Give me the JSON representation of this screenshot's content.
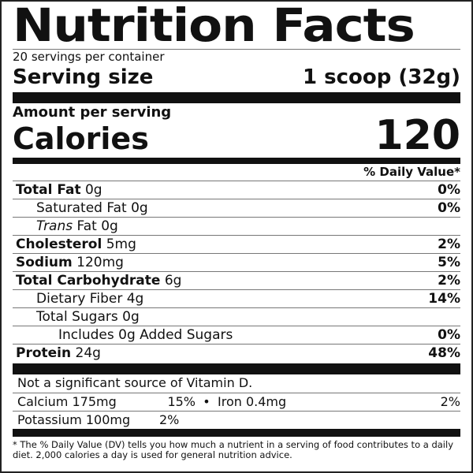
{
  "title": "Nutrition Facts",
  "servings_per_container": "20 servings per container",
  "serving_size": {
    "label": "Serving size",
    "value": "1 scoop (32g)"
  },
  "amount_per_serving": "Amount per serving",
  "calories": {
    "label": "Calories",
    "value": "120"
  },
  "dv_header": "% Daily Value*",
  "nutrients": [
    {
      "name": "Total Fat",
      "amount": "0g",
      "dv": "0%",
      "bold": true,
      "indent": 0
    },
    {
      "name": "Saturated Fat",
      "amount": "0g",
      "dv": "0%",
      "bold": false,
      "indent": 1
    },
    {
      "name_italic": "Trans",
      "name": "Fat",
      "amount": "0g",
      "dv": "",
      "bold": false,
      "indent": 1
    },
    {
      "name": "Cholesterol",
      "amount": "5mg",
      "dv": "2%",
      "bold": true,
      "indent": 0
    },
    {
      "name": "Sodium",
      "amount": "120mg",
      "dv": "5%",
      "bold": true,
      "indent": 0
    },
    {
      "name": "Total Carbohydrate",
      "amount": "6g",
      "dv": "2%",
      "bold": true,
      "indent": 0
    },
    {
      "name": "Dietary Fiber",
      "amount": "4g",
      "dv": "14%",
      "bold": false,
      "indent": 1
    },
    {
      "name": "Total Sugars",
      "amount": "0g",
      "dv": "",
      "bold": false,
      "indent": 1
    },
    {
      "name": "Includes 0g Added Sugars",
      "amount": "",
      "dv": "0%",
      "bold": false,
      "indent": 2
    },
    {
      "name": "Protein",
      "amount": "24g",
      "dv": "48%",
      "bold": true,
      "indent": 0
    }
  ],
  "vitamin_d": "Not a significant source of Vitamin D.",
  "calcium": {
    "label": "Calcium 175mg",
    "dv": "15%"
  },
  "separator": "•",
  "iron": {
    "label": "Iron 0.4mg",
    "dv": "2%"
  },
  "potassium": {
    "label": "Potassium 100mg",
    "dv": "2%"
  },
  "footnote": "* The % Daily Value (DV) tells you how much a nutrient in a serving of food contributes to a daily diet. 2,000 calories a day is used for general nutrition advice."
}
